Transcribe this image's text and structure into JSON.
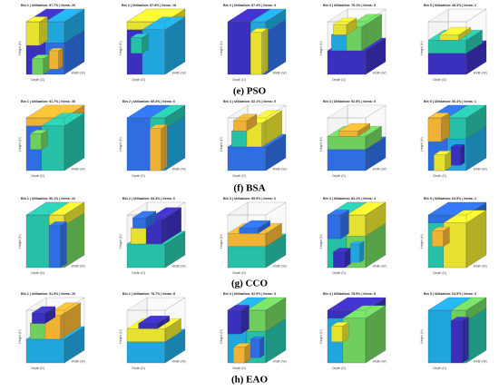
{
  "figure": {
    "axis_labels": {
      "height": "Height (H)",
      "depth": "Depth (D)",
      "width": "Width (W)"
    },
    "rows": [
      {
        "caption": "(e) PSO",
        "bins": [
          "Bin 1 | Utilization: 87.7% | Items: 20",
          "Bin 2 | Utilization: 87.8% | Items: 18",
          "Bin 3 | Utilization: 87.4% | Items: 4",
          "Bin 4 | Utilization: 75.1% | Items: 5",
          "Bin 5 | Utilization: 48.3% | Items: 2"
        ]
      },
      {
        "caption": "(f) BSA",
        "bins": [
          "Bin 1 | Utilization: 91.7% | Items: 30",
          "Bin 2 | Utilization: 85.3% | Items: 6",
          "Bin 3 | Utilization: 82.1% | Items: 5",
          "Bin 4 | Utilization: 92.5% | Items: 5",
          "Bin 5 | Utilization: 56.4% | Items: 1"
        ]
      },
      {
        "caption": "(g) CCO",
        "bins": [
          "Bin 1 | Utilization: 90.1% | Items: 22",
          "Bin 2 | Utilization: 83.3% | Items: 6",
          "Bin 3 | Utilization: 89.5% | Items: 6",
          "Bin 4 | Utilization: 83.1% | Items: 4",
          "Bin 5 | Utilization: 64.5% | Items: 2"
        ]
      },
      {
        "caption": "(h) EAO",
        "bins": [
          "Bin 1 | Utilization: 91.9% | Items: 26",
          "Bin 2 | Utilization: 78.7% | Items: 8",
          "Bin 3 | Utilization: 92.9% | Items: 3",
          "Bin 4 | Utilization: 78.5% | Items: 8",
          "Bin 5 | Utilization: 64.5% | Items: 3"
        ]
      }
    ]
  }
}
